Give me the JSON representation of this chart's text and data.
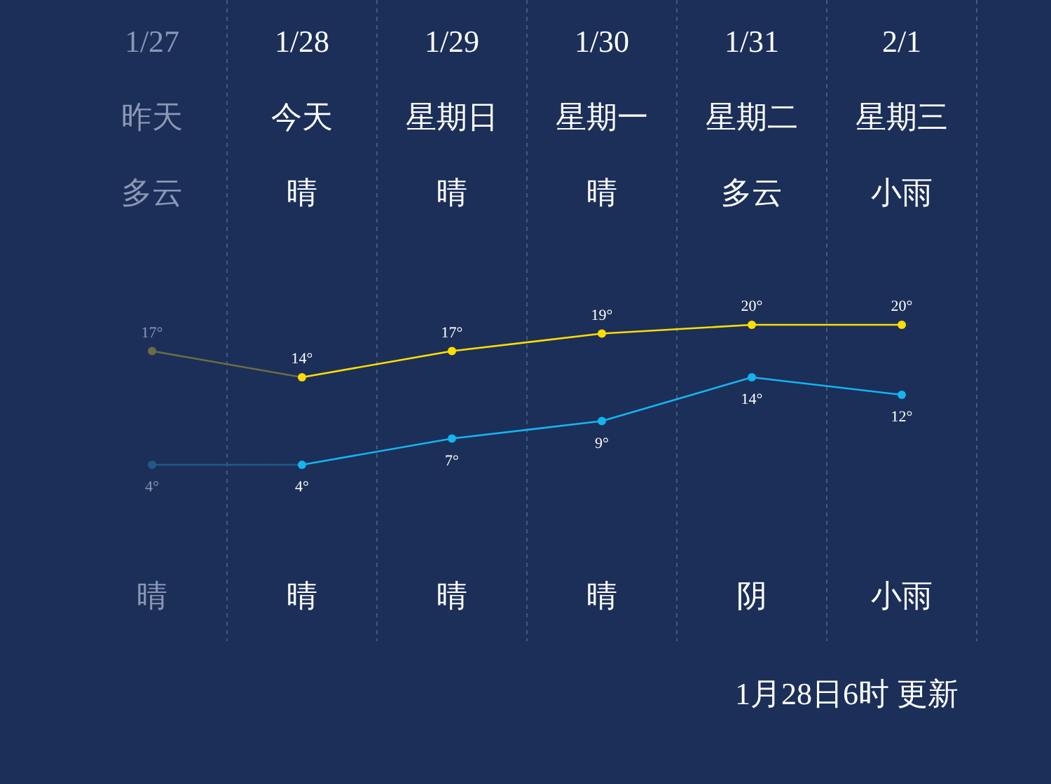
{
  "chart_data": {
    "type": "line",
    "categories": [
      "1/27",
      "1/28",
      "1/29",
      "1/30",
      "1/31",
      "2/1"
    ],
    "series": [
      {
        "values": [
          17,
          14,
          17,
          19,
          20,
          20
        ],
        "color": "#ffdd00",
        "colors": [
          "#6b6b45",
          "#ffdd00",
          "#ffdd00",
          "#ffdd00",
          "#ffdd00",
          "#ffdd00"
        ],
        "value_labels": [
          "17°",
          "14°",
          "17°",
          "19°",
          "20°",
          "20°"
        ]
      },
      {
        "values": [
          4,
          4,
          7,
          9,
          14,
          12
        ],
        "color": "#14b4f0",
        "colors": [
          "#1f5a86",
          "#14b4f0",
          "#14b4f0",
          "#14b4f0",
          "#14b4f0",
          "#14b4f0"
        ],
        "value_labels": [
          "4°",
          "4°",
          "7°",
          "9°",
          "14°",
          "12°"
        ]
      }
    ],
    "annotations": [
      "昨天",
      "今天",
      "星期日",
      "星期一",
      "星期二",
      "星期三",
      "多云",
      "晴",
      "晴",
      "晴",
      "多云",
      "小雨",
      "晴",
      "晴",
      "晴",
      "晴",
      "阴",
      "小雨",
      "1月28日6时 更新"
    ],
    "grid": "x",
    "marker": "circle"
  }
}
